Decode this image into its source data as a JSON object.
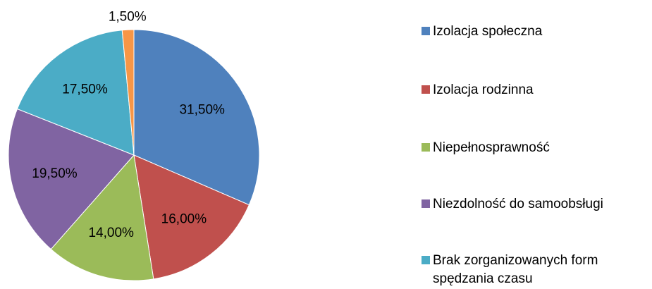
{
  "chart_data": {
    "type": "pie",
    "categories": [
      "Izolacja społeczna",
      "Izolacja rodzinna",
      "Niepełnosprawność",
      "Niezdolność do samoobsługi",
      "Brak zorganizowanych form spędzania czasu",
      null
    ],
    "values": [
      31.5,
      16,
      14,
      19.5,
      17.5,
      1.5
    ],
    "value_labels": [
      "31,50%",
      "16,00%",
      "14,00%",
      "19,50%",
      "17,50%",
      "1,50%"
    ],
    "colors": [
      "#4f81bd",
      "#c0504d",
      "#9bbb59",
      "#8064a2",
      "#4bacc6",
      "#f79646"
    ],
    "legend": "right"
  }
}
